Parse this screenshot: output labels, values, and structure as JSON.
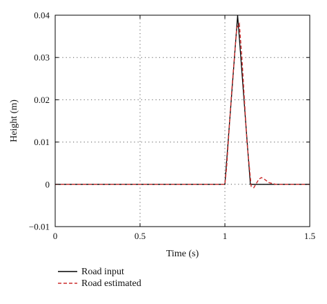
{
  "chart_data": {
    "type": "line",
    "xlabel": "Time (s)",
    "ylabel": "Height (m)",
    "xlim": [
      0,
      1.5
    ],
    "ylim": [
      -0.01,
      0.04
    ],
    "x_ticks": [
      "0",
      "0.5",
      "1",
      "1.5"
    ],
    "y_ticks": [
      "−0.01",
      "0",
      "0.01",
      "0.02",
      "0.03",
      "0.04"
    ],
    "grid": true,
    "legend_position": "bottom-left",
    "series": [
      {
        "name": "Road input",
        "color": "#000000",
        "style": "solid",
        "x": [
          0,
          1.0,
          1.075,
          1.15,
          1.5
        ],
        "y": [
          0,
          0,
          0.04,
          0,
          0
        ]
      },
      {
        "name": "Road estimated",
        "color": "#cc2a2a",
        "style": "dashed",
        "x": [
          0,
          1.0,
          1.01,
          1.04,
          1.07,
          1.085,
          1.1,
          1.13,
          1.155,
          1.17,
          1.185,
          1.2,
          1.215,
          1.23,
          1.26,
          1.3,
          1.5
        ],
        "y": [
          0,
          0,
          0.004,
          0.022,
          0.037,
          0.038,
          0.03,
          0.01,
          -0.0005,
          -0.0008,
          0.0002,
          0.0012,
          0.0016,
          0.0013,
          0.0004,
          0,
          0
        ]
      }
    ]
  }
}
